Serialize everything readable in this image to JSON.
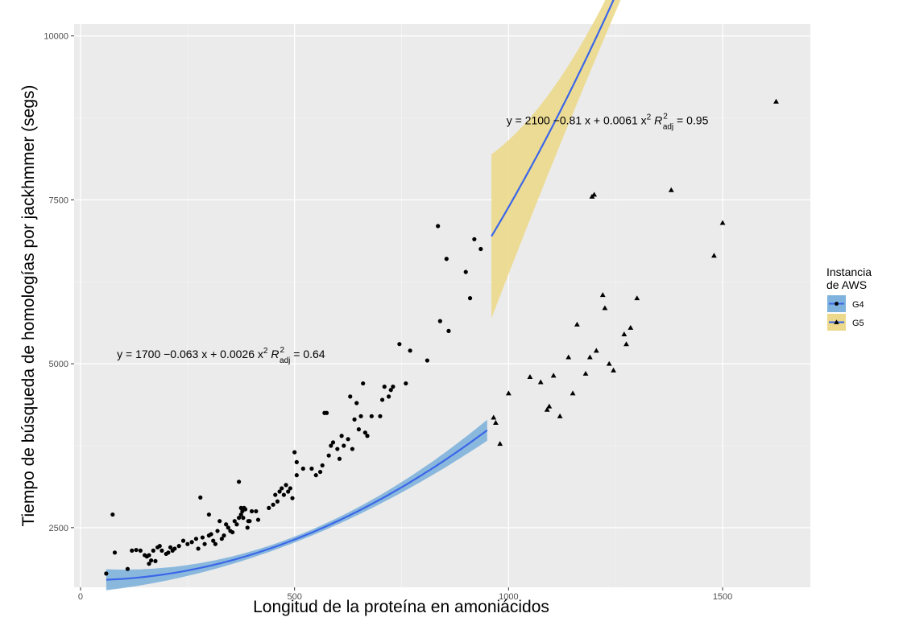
{
  "chart_data": {
    "type": "scatter",
    "xlabel": "Longitud de la proteína en amoniácidos",
    "ylabel": "Tiempo de búsqueda de homologías por jackhmmer (segs)",
    "xlim": [
      -15,
      1705
    ],
    "ylim": [
      1590,
      10180
    ],
    "x_ticks": [
      0,
      500,
      1000,
      1500
    ],
    "x_tick_labels": [
      "0",
      "500",
      "1000",
      "1500"
    ],
    "y_ticks": [
      2500,
      5000,
      7500,
      10000
    ],
    "y_tick_labels": [
      "2500",
      "5000",
      "7500",
      "10000"
    ],
    "grid": true,
    "legend": {
      "title_line1": "Instancia",
      "title_line2": "de AWS",
      "position": "right"
    },
    "series": [
      {
        "name": "G4",
        "marker": "circle",
        "fill_color": "#7fb2dc",
        "line_color": "#3b66e8",
        "fit": {
          "a": 1700,
          "b": -0.063,
          "c": 0.0026,
          "x_range": [
            60,
            950
          ],
          "band_halfwidth_ends": 160,
          "band_halfwidth_mid": 45
        },
        "equation": {
          "prefix": "y = 1700 −0.063 x + 0.0026 x",
          "r2_label": "R",
          "r2_value": " = 0.64",
          "sup": "2",
          "sub": "adj",
          "x": 85,
          "y": 5090
        },
        "points": [
          [
            60,
            1800
          ],
          [
            75,
            2700
          ],
          [
            80,
            2120
          ],
          [
            110,
            1870
          ],
          [
            120,
            2150
          ],
          [
            130,
            2160
          ],
          [
            140,
            2150
          ],
          [
            150,
            2080
          ],
          [
            155,
            2060
          ],
          [
            160,
            2080
          ],
          [
            160,
            1950
          ],
          [
            165,
            2000
          ],
          [
            170,
            2150
          ],
          [
            175,
            1990
          ],
          [
            180,
            2200
          ],
          [
            185,
            2220
          ],
          [
            190,
            2150
          ],
          [
            200,
            2100
          ],
          [
            205,
            2120
          ],
          [
            210,
            2200
          ],
          [
            215,
            2150
          ],
          [
            220,
            2180
          ],
          [
            230,
            2220
          ],
          [
            240,
            2300
          ],
          [
            250,
            2250
          ],
          [
            260,
            2280
          ],
          [
            270,
            2330
          ],
          [
            275,
            2180
          ],
          [
            280,
            2960
          ],
          [
            285,
            2350
          ],
          [
            290,
            2250
          ],
          [
            300,
            2700
          ],
          [
            300,
            2380
          ],
          [
            305,
            2400
          ],
          [
            310,
            2300
          ],
          [
            315,
            2250
          ],
          [
            320,
            2450
          ],
          [
            325,
            2600
          ],
          [
            330,
            2330
          ],
          [
            335,
            2380
          ],
          [
            340,
            2550
          ],
          [
            345,
            2500
          ],
          [
            350,
            2450
          ],
          [
            355,
            2430
          ],
          [
            360,
            2600
          ],
          [
            365,
            2550
          ],
          [
            370,
            3200
          ],
          [
            370,
            2650
          ],
          [
            375,
            2700
          ],
          [
            375,
            2800
          ],
          [
            378,
            2750
          ],
          [
            380,
            2650
          ],
          [
            382,
            2800
          ],
          [
            385,
            2780
          ],
          [
            390,
            2500
          ],
          [
            392,
            2600
          ],
          [
            395,
            2600
          ],
          [
            400,
            2750
          ],
          [
            410,
            2750
          ],
          [
            415,
            2620
          ],
          [
            440,
            2800
          ],
          [
            450,
            2850
          ],
          [
            455,
            3000
          ],
          [
            460,
            2900
          ],
          [
            465,
            3050
          ],
          [
            470,
            3100
          ],
          [
            475,
            3000
          ],
          [
            480,
            3150
          ],
          [
            485,
            3050
          ],
          [
            490,
            3100
          ],
          [
            495,
            2950
          ],
          [
            500,
            3650
          ],
          [
            505,
            3500
          ],
          [
            505,
            3300
          ],
          [
            520,
            3400
          ],
          [
            540,
            3400
          ],
          [
            550,
            3300
          ],
          [
            560,
            3350
          ],
          [
            565,
            3450
          ],
          [
            570,
            4250
          ],
          [
            575,
            4250
          ],
          [
            580,
            3600
          ],
          [
            585,
            3750
          ],
          [
            590,
            3800
          ],
          [
            600,
            3700
          ],
          [
            605,
            3550
          ],
          [
            610,
            3900
          ],
          [
            615,
            3750
          ],
          [
            625,
            3850
          ],
          [
            630,
            4500
          ],
          [
            635,
            3700
          ],
          [
            640,
            4150
          ],
          [
            645,
            4400
          ],
          [
            650,
            4000
          ],
          [
            655,
            4200
          ],
          [
            660,
            4700
          ],
          [
            665,
            3950
          ],
          [
            670,
            3900
          ],
          [
            680,
            4200
          ],
          [
            700,
            4200
          ],
          [
            705,
            4450
          ],
          [
            710,
            4650
          ],
          [
            720,
            4500
          ],
          [
            725,
            4600
          ],
          [
            730,
            4650
          ],
          [
            745,
            5300
          ],
          [
            760,
            4700
          ],
          [
            770,
            5200
          ],
          [
            810,
            5050
          ],
          [
            835,
            7100
          ],
          [
            840,
            5650
          ],
          [
            855,
            6600
          ],
          [
            860,
            5500
          ],
          [
            900,
            6400
          ],
          [
            910,
            6000
          ],
          [
            920,
            6900
          ],
          [
            935,
            6750
          ]
        ]
      },
      {
        "name": "G5",
        "marker": "triangle",
        "fill_color": "#ecd98b",
        "line_color": "#3b66e8",
        "fit": {
          "a": 2100,
          "b": -0.81,
          "c": 0.0061,
          "x_range": [
            960,
            1630
          ],
          "band_halfwidth_ends": 1250,
          "band_halfwidth_mid": 230
        },
        "equation": {
          "prefix": "y = 2100 −0.81 x + 0.0061 x",
          "r2_label": "R",
          "r2_value": " = 0.95",
          "sup": "2",
          "sub": "adj",
          "x": 995,
          "y": 8650
        },
        "points": [
          [
            965,
            4180
          ],
          [
            970,
            4100
          ],
          [
            980,
            3780
          ],
          [
            1000,
            4550
          ],
          [
            1050,
            4800
          ],
          [
            1075,
            4720
          ],
          [
            1090,
            4300
          ],
          [
            1095,
            4350
          ],
          [
            1105,
            4820
          ],
          [
            1120,
            4200
          ],
          [
            1140,
            5100
          ],
          [
            1150,
            4550
          ],
          [
            1160,
            5600
          ],
          [
            1180,
            4850
          ],
          [
            1190,
            5100
          ],
          [
            1195,
            7550
          ],
          [
            1200,
            7580
          ],
          [
            1205,
            5200
          ],
          [
            1220,
            6050
          ],
          [
            1225,
            5850
          ],
          [
            1235,
            5000
          ],
          [
            1245,
            4900
          ],
          [
            1270,
            5450
          ],
          [
            1275,
            5300
          ],
          [
            1285,
            5550
          ],
          [
            1300,
            6000
          ],
          [
            1380,
            7650
          ],
          [
            1480,
            6650
          ],
          [
            1500,
            7150
          ],
          [
            1625,
            9000
          ]
        ]
      }
    ]
  }
}
